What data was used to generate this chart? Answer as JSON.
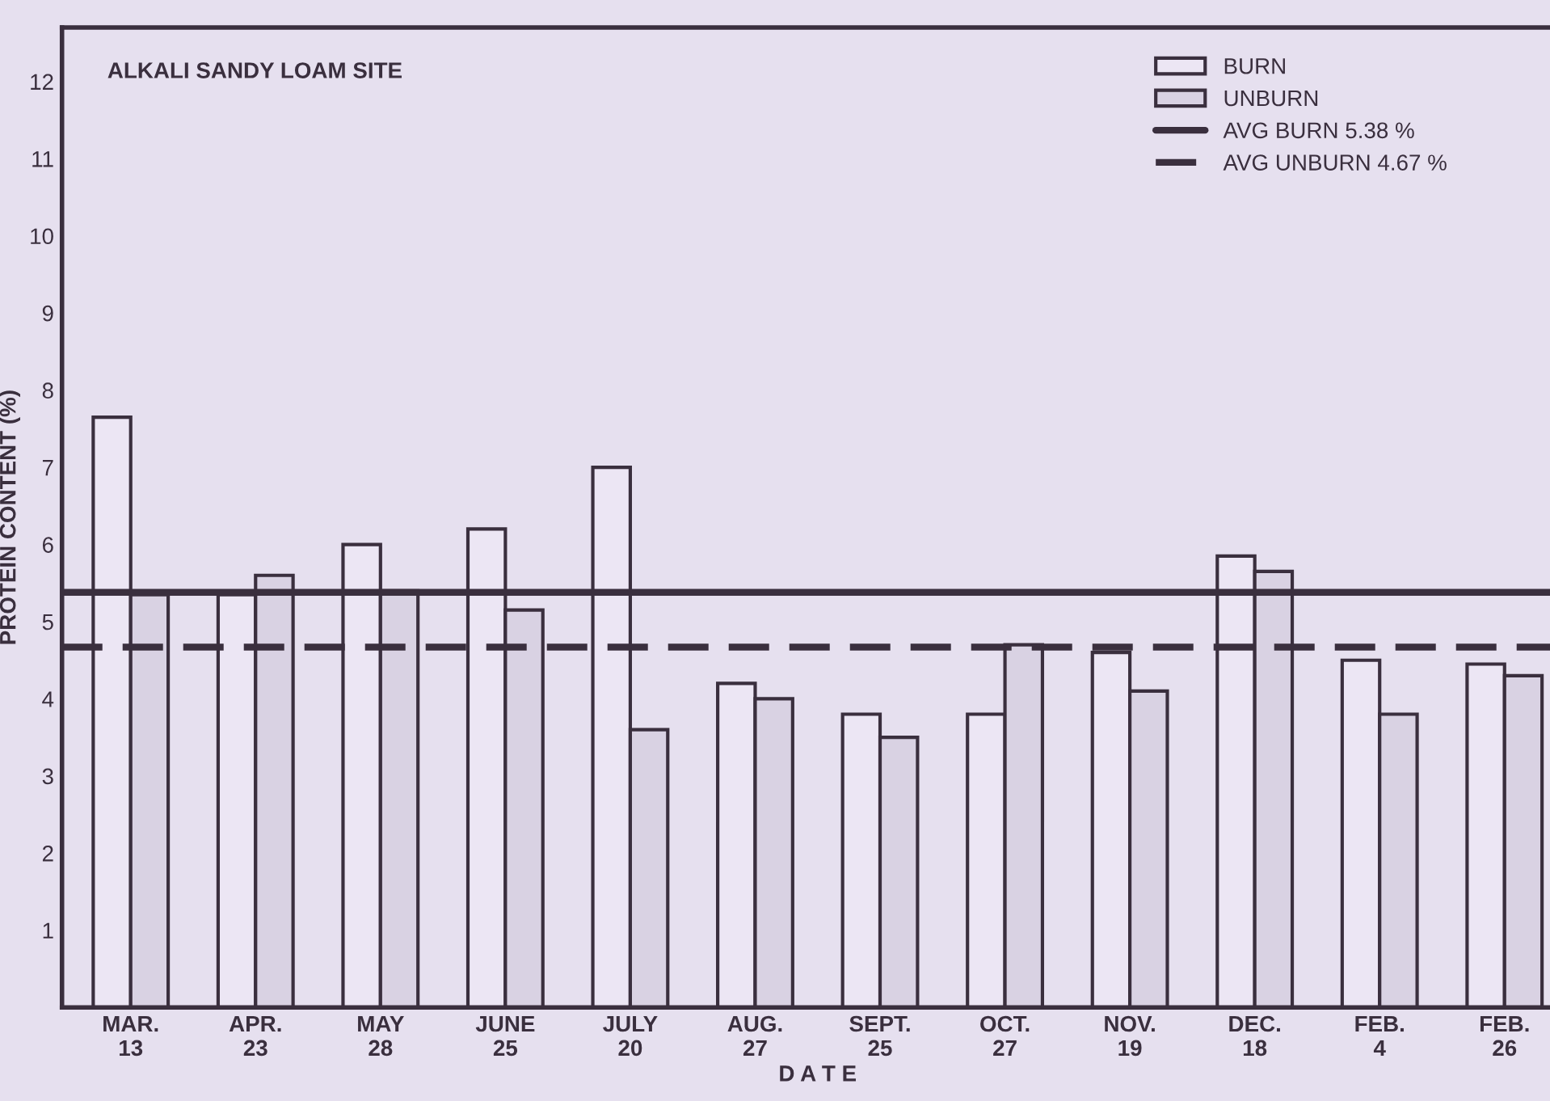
{
  "chart_data": {
    "type": "bar",
    "title": "ALKALI SANDY LOAM SITE",
    "xlabel": "D A T E",
    "ylabel": "PROTEIN CONTENT (%)",
    "categories": [
      "MAR.\n13",
      "APR.\n23",
      "MAY\n28",
      "JUNE\n25",
      "JULY\n20",
      "AUG.\n27",
      "SEPT.\n25",
      "OCT.\n27",
      "NOV.\n19",
      "DEC.\n18",
      "FEB.\n4",
      "FEB.\n26"
    ],
    "series": [
      {
        "name": "BURN",
        "color": "#ece6f4",
        "values": [
          7.65,
          5.35,
          6.0,
          6.2,
          7.0,
          4.2,
          3.8,
          3.8,
          4.6,
          5.85,
          4.5,
          4.45
        ]
      },
      {
        "name": "UNBURN",
        "color": "#d9d2e3",
        "values": [
          5.35,
          5.6,
          5.4,
          5.15,
          3.6,
          4.0,
          3.5,
          4.7,
          4.1,
          5.65,
          3.8,
          4.3
        ]
      }
    ],
    "ref_lines": [
      {
        "axis": "y",
        "value": 5.38,
        "label": "AVG BURN 5.38 %",
        "color": "#3a2f3e",
        "line_style": "solid"
      },
      {
        "axis": "y",
        "value": 4.67,
        "label": "AVG UNBURN 4.67 %",
        "color": "#3a2f3e",
        "line_style": "dashed"
      }
    ],
    "ylim": [
      0,
      12.7
    ],
    "yticks": [
      1,
      2,
      3,
      4,
      5,
      6,
      7,
      8,
      9,
      10,
      11,
      12
    ],
    "grid": false,
    "legend": "top right"
  }
}
